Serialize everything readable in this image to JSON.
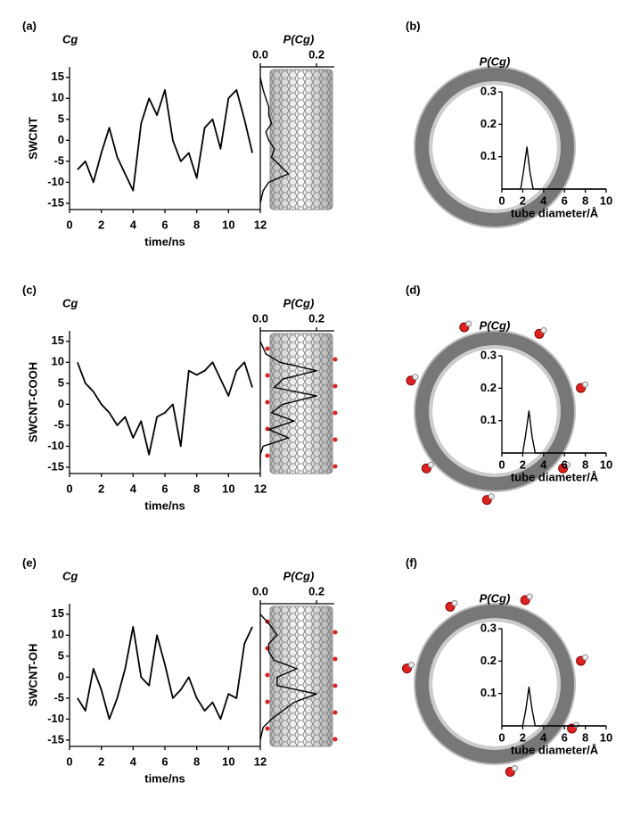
{
  "chart_data": [
    {
      "type": "line",
      "panel": "(a)",
      "row_label": "SWCNT",
      "y_label": "Cg",
      "x_label": "time/ns",
      "color": "#000000",
      "x": [
        0.5,
        1,
        1.5,
        2,
        2.5,
        3,
        3.5,
        4,
        4.5,
        5,
        5.5,
        6,
        6.5,
        7,
        7.5,
        8,
        8.5,
        9,
        9.5,
        10,
        10.5,
        11,
        11.5
      ],
      "values": [
        -7,
        -5,
        -10,
        -3,
        3,
        -4,
        -8,
        -12,
        4,
        10,
        6,
        12,
        0,
        -5,
        -3,
        -9,
        3,
        5,
        -2,
        10,
        12,
        5,
        -3
      ],
      "xlim": [
        0,
        12
      ],
      "xticks": [
        0,
        2,
        4,
        6,
        8,
        10,
        12
      ],
      "ylim": [
        -16.5,
        17.5
      ],
      "yticks": [
        -15,
        -10,
        -5,
        0,
        5,
        10,
        15
      ]
    },
    {
      "type": "line",
      "orientation": "horizontal",
      "x_label": "P(Cg)",
      "color": "#000000",
      "x": [
        -15,
        -12,
        -10,
        -8,
        -6,
        -4,
        -2,
        0,
        2,
        4,
        6,
        8,
        10,
        12,
        15
      ],
      "values": [
        0,
        0.01,
        0.03,
        0.1,
        0.07,
        0.04,
        0.05,
        0.03,
        0.02,
        0.04,
        0.03,
        0.03,
        0.02,
        0.01,
        0
      ],
      "xlim": [
        0,
        0.263
      ],
      "xticks": [
        {
          "value": 0,
          "label": "0.0"
        },
        0.2
      ],
      "ylim": [
        -16.5,
        17.5
      ]
    },
    {
      "type": "line",
      "panel": "(b)",
      "y_label": "P(Cg)",
      "x_label": "tube diameter/Å",
      "color": "#000000",
      "x": [
        0,
        1.8,
        2.1,
        2.4,
        2.7,
        3,
        4,
        10
      ],
      "values": [
        0,
        0,
        0.06,
        0.13,
        0.05,
        0,
        0,
        0
      ],
      "xlim": [
        0,
        10
      ],
      "xticks": [
        0,
        2,
        4,
        6,
        8,
        10
      ],
      "ylim": [
        0,
        0.3
      ],
      "yticks": [
        0.1,
        0.2,
        0.3
      ]
    },
    {
      "type": "line",
      "panel": "(c)",
      "row_label": "SWCNT-COOH",
      "y_label": "Cg",
      "x_label": "time/ns",
      "color": "#000000",
      "x": [
        0.5,
        1,
        1.5,
        2,
        2.5,
        3,
        3.5,
        4,
        4.5,
        5,
        5.5,
        6,
        6.5,
        7,
        7.5,
        8,
        8.5,
        9,
        9.5,
        10,
        10.5,
        11,
        11.5
      ],
      "values": [
        10,
        5,
        3,
        0,
        -2,
        -5,
        -3,
        -8,
        -4,
        -12,
        -3,
        -2,
        0,
        -10,
        8,
        7,
        8,
        10,
        6,
        2,
        8,
        10,
        4
      ],
      "xlim": [
        0,
        12
      ],
      "xticks": [
        0,
        2,
        4,
        6,
        8,
        10,
        12
      ],
      "ylim": [
        -16.5,
        17.5
      ],
      "yticks": [
        -15,
        -10,
        -5,
        0,
        5,
        10,
        15
      ]
    },
    {
      "type": "line",
      "orientation": "horizontal",
      "x_label": "P(Cg)",
      "color": "#000000",
      "x": [
        -15,
        -12,
        -10,
        -8,
        -6,
        -4,
        -2,
        0,
        2,
        4,
        6,
        8,
        10,
        12,
        15
      ],
      "values": [
        0,
        0,
        0.01,
        0.1,
        0.03,
        0.12,
        0.04,
        0.08,
        0.2,
        0.05,
        0.08,
        0.2,
        0.07,
        0.02,
        0
      ],
      "xlim": [
        0,
        0.263
      ],
      "xticks": [
        {
          "value": 0,
          "label": "0.0"
        },
        0.2
      ],
      "ylim": [
        -16.5,
        17.5
      ]
    },
    {
      "type": "line",
      "panel": "(d)",
      "y_label": "P(Cg)",
      "x_label": "tube diameter/Å",
      "color": "#000000",
      "x": [
        0,
        2,
        2.3,
        2.6,
        2.9,
        3.2,
        4,
        10
      ],
      "values": [
        0,
        0,
        0.06,
        0.13,
        0.05,
        0,
        0,
        0
      ],
      "xlim": [
        0,
        10
      ],
      "xticks": [
        0,
        2,
        4,
        6,
        8,
        10
      ],
      "ylim": [
        0,
        0.3
      ],
      "yticks": [
        0.1,
        0.2,
        0.3
      ]
    },
    {
      "type": "line",
      "panel": "(e)",
      "row_label": "SWCNT-OH",
      "y_label": "Cg",
      "x_label": "time/ns",
      "color": "#000000",
      "x": [
        0.5,
        1,
        1.5,
        2,
        2.5,
        3,
        3.5,
        4,
        4.5,
        5,
        5.5,
        6,
        6.5,
        7,
        7.5,
        8,
        8.5,
        9,
        9.5,
        10,
        10.5,
        11,
        11.5
      ],
      "values": [
        -5,
        -8,
        2,
        -3,
        -10,
        -5,
        2,
        12,
        0,
        -2,
        10,
        3,
        -5,
        -3,
        0,
        -5,
        -8,
        -6,
        -10,
        -4,
        -5,
        8,
        12
      ],
      "xlim": [
        0,
        12
      ],
      "xticks": [
        0,
        2,
        4,
        6,
        8,
        10,
        12
      ],
      "ylim": [
        -16.5,
        17.5
      ],
      "yticks": [
        -15,
        -10,
        -5,
        0,
        5,
        10,
        15
      ]
    },
    {
      "type": "line",
      "orientation": "horizontal",
      "x_label": "P(Cg)",
      "color": "#000000",
      "x": [
        -15,
        -12,
        -10,
        -8,
        -6,
        -4,
        -2,
        0,
        2,
        4,
        6,
        8,
        10,
        12,
        15
      ],
      "values": [
        0,
        0.01,
        0.04,
        0.08,
        0.12,
        0.2,
        0.06,
        0.06,
        0.13,
        0.05,
        0.03,
        0.03,
        0.06,
        0.04,
        0
      ],
      "xlim": [
        0,
        0.263
      ],
      "xticks": [
        {
          "value": 0,
          "label": "0.0"
        },
        0.2
      ],
      "ylim": [
        -16.5,
        17.5
      ]
    },
    {
      "type": "line",
      "panel": "(f)",
      "y_label": "P(Cg)",
      "x_label": "tube diameter/Å",
      "color": "#000000",
      "x": [
        0,
        2,
        2.3,
        2.6,
        2.9,
        3.2,
        4,
        10
      ],
      "values": [
        0,
        0,
        0.05,
        0.12,
        0.05,
        0,
        0,
        0
      ],
      "xlim": [
        0,
        10
      ],
      "xticks": [
        0,
        2,
        4,
        6,
        8,
        10
      ],
      "ylim": [
        0,
        0.3
      ],
      "yticks": [
        0.1,
        0.2,
        0.3
      ]
    }
  ]
}
